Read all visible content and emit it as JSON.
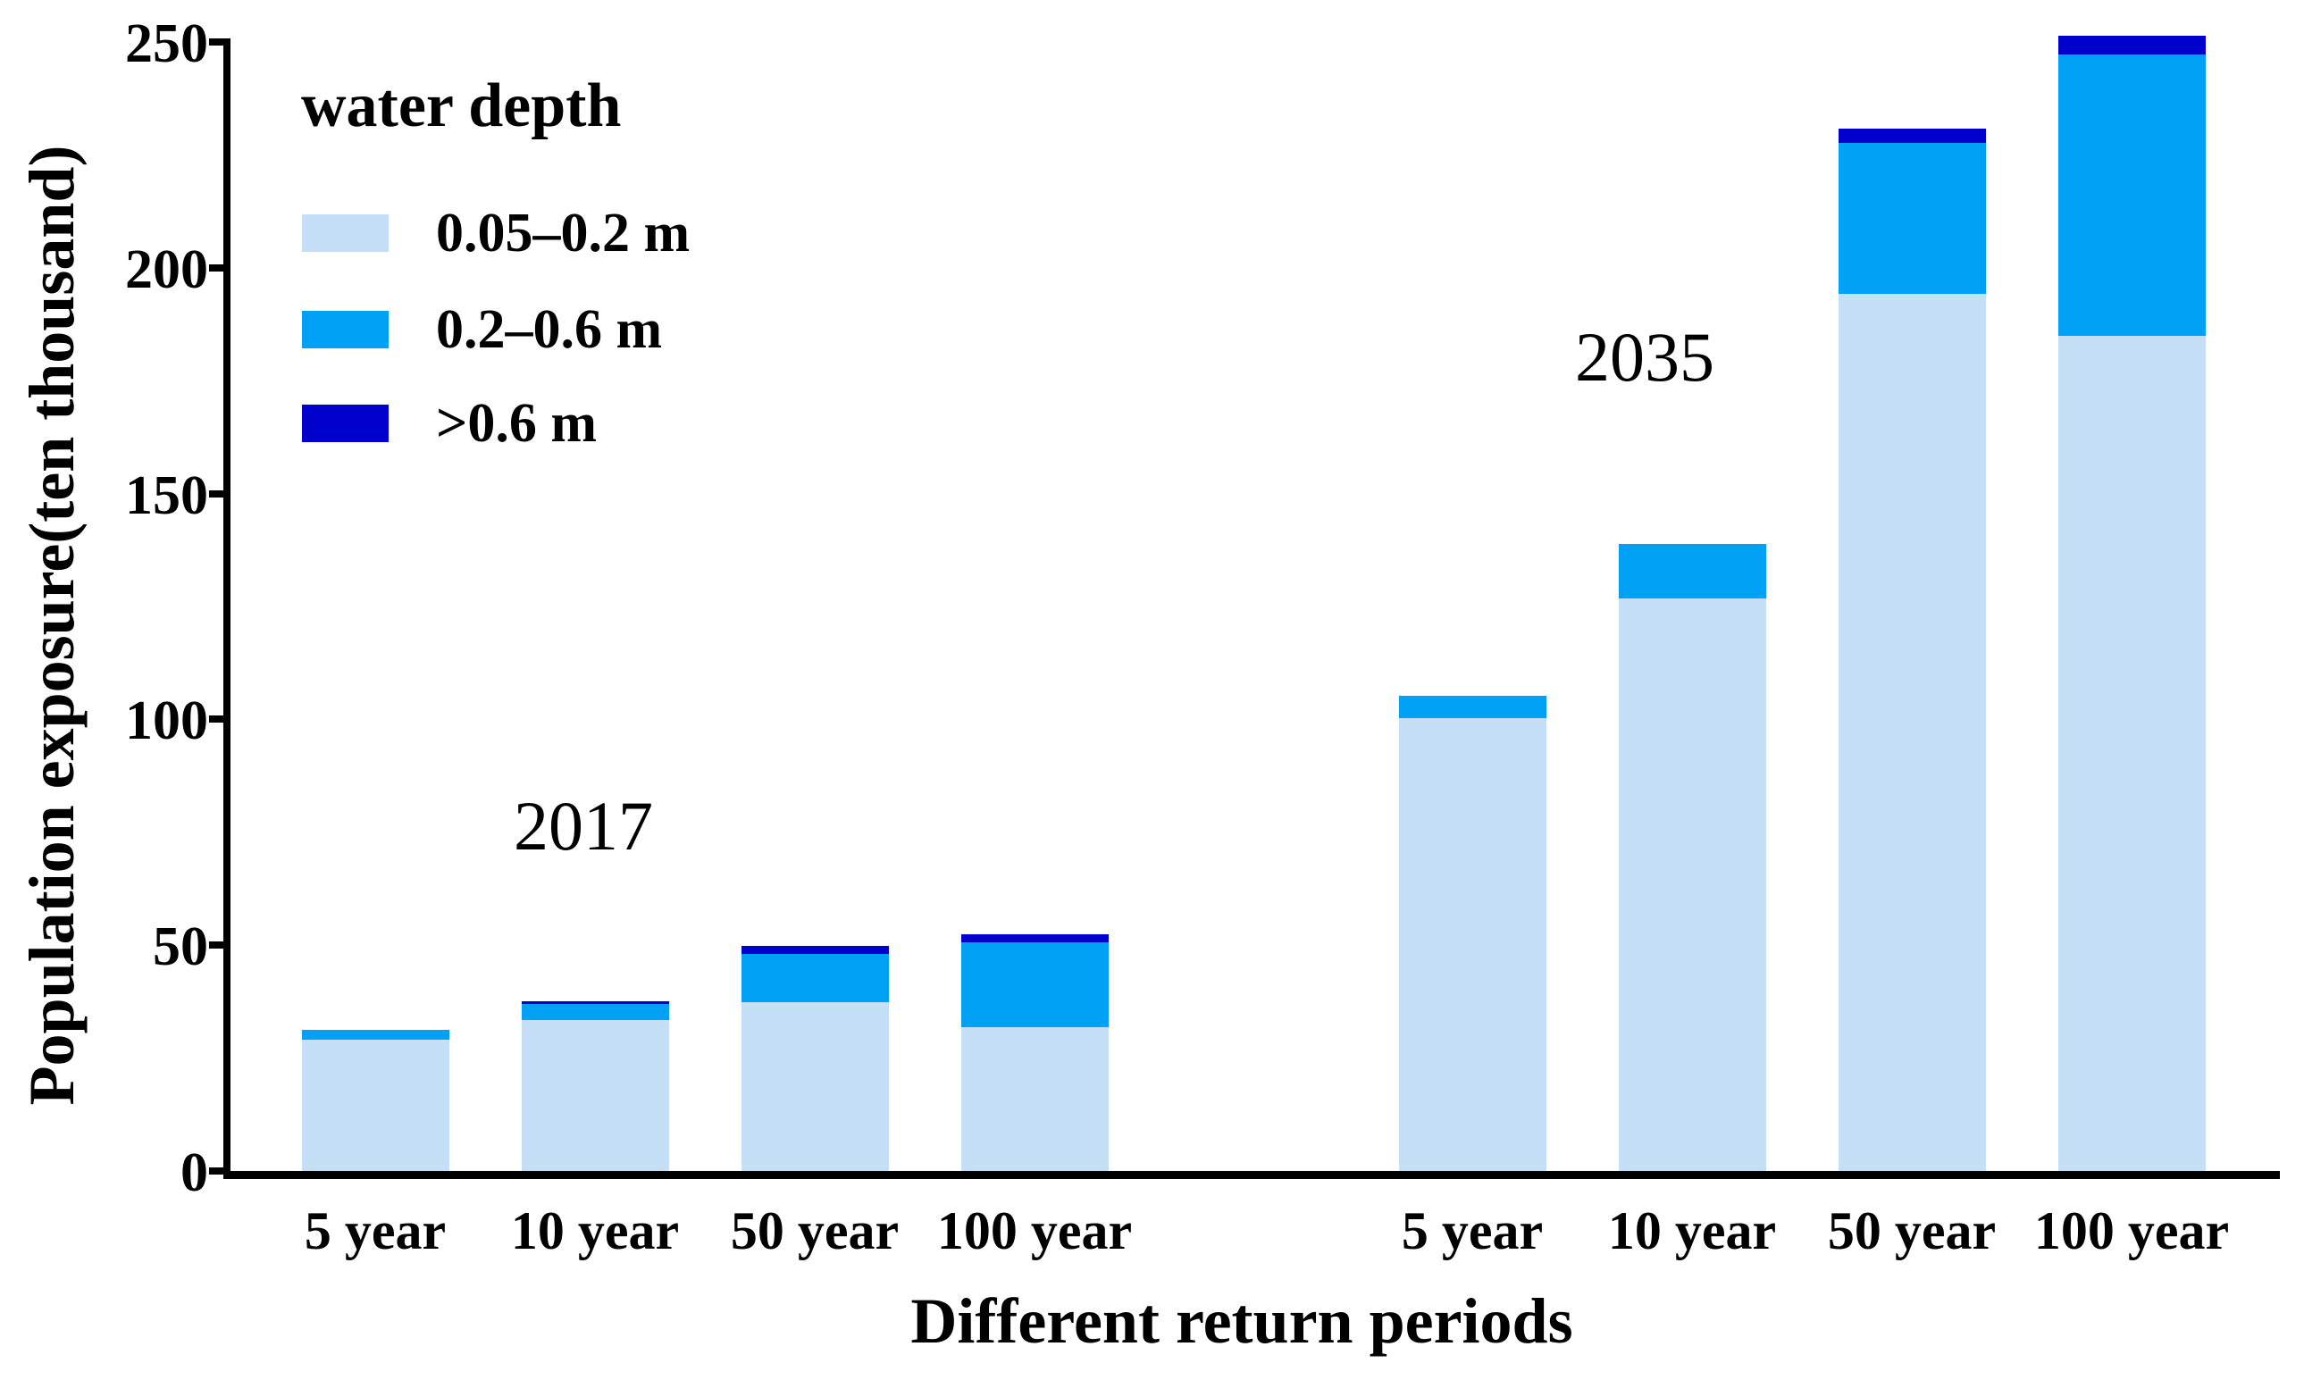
{
  "chart_data": {
    "type": "bar",
    "stacked": true,
    "title": "",
    "xlabel": "Different return periods",
    "ylabel": "Population exposure(ten thousand)",
    "ylim": [
      0,
      250
    ],
    "yticks": [
      0,
      50,
      100,
      150,
      200,
      250
    ],
    "grid": false,
    "legend_title": "water depth",
    "legend_position": "top-left",
    "group_labels": [
      "2017",
      "2035"
    ],
    "categories": [
      "5 year",
      "10 year",
      "50 year",
      "100 year",
      "5 year",
      "10 year",
      "50 year",
      "100 year"
    ],
    "series": [
      {
        "name": "0.05–0.2 m",
        "color": "#C5DFF7",
        "values": [
          29.0,
          33.5,
          37.3,
          31.9,
          100.2,
          126.8,
          194.2,
          185.0
        ]
      },
      {
        "name": "0.2–0.6 m",
        "color": "#00A0F5",
        "values": [
          2.2,
          3.4,
          10.8,
          18.8,
          5.1,
          12.0,
          33.5,
          62.3
        ]
      },
      {
        "name": ">0.6 m",
        "color": "#0000CD",
        "values": [
          0,
          0.6,
          1.8,
          1.7,
          0,
          0,
          3.2,
          4.1
        ]
      }
    ],
    "totals": [
      31.2,
      37.5,
      49.9,
      52.4,
      105.3,
      138.8,
      230.9,
      251.4
    ],
    "axis_color": "#000000",
    "text_color": "#000000",
    "background_color": "#ffffff"
  }
}
